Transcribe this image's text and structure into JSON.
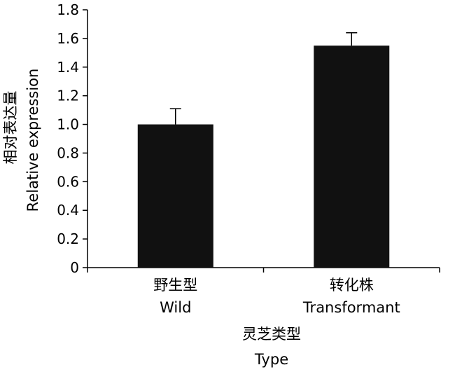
{
  "chart_data": {
    "type": "bar",
    "categories": [
      {
        "zh": "野生型",
        "en": "Wild"
      },
      {
        "zh": "转化株",
        "en": "Transformant"
      }
    ],
    "values": [
      1.0,
      1.55
    ],
    "error": [
      0.11,
      0.09
    ],
    "xlabel": {
      "zh": "灵芝类型",
      "en": "Type"
    },
    "ylabel": {
      "zh": "相对表达量",
      "en": "Relative expression"
    },
    "ylim": [
      0,
      1.8
    ],
    "yticks": [
      "0",
      "0.2",
      "0.4",
      "0.6",
      "0.8",
      "1.0",
      "1.2",
      "1.4",
      "1.6",
      "1.8"
    ],
    "bar_color": "#111111",
    "grid": false,
    "legend": "none"
  }
}
